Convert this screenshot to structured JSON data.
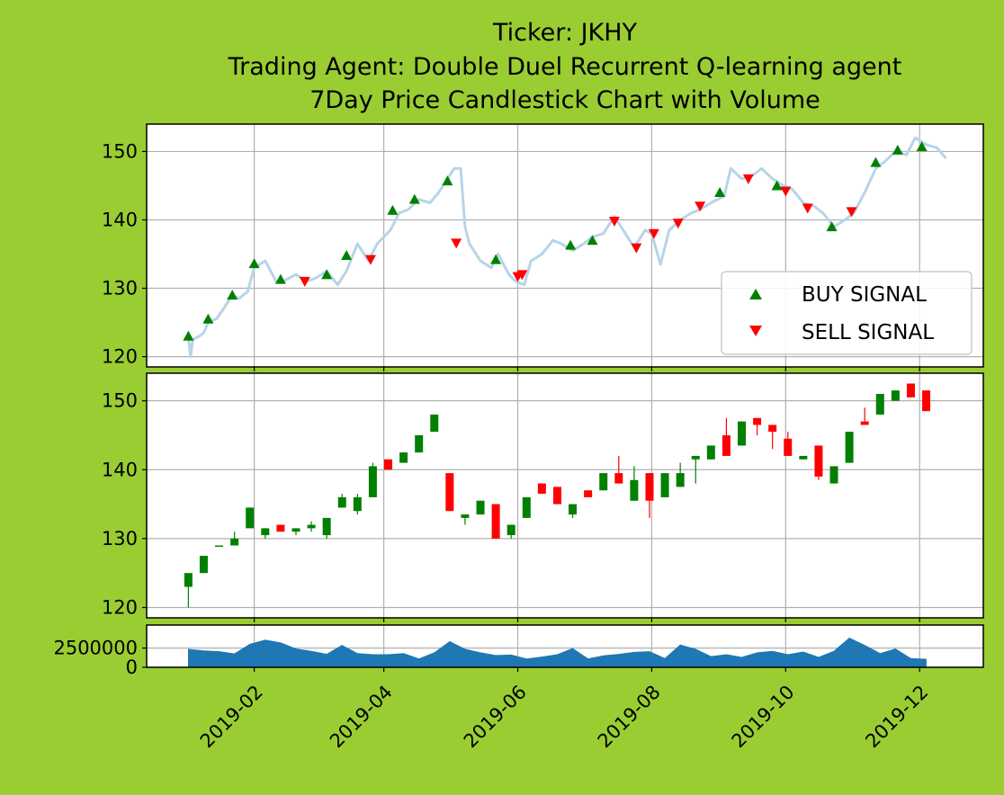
{
  "colors": {
    "background": "#9ACD32",
    "price_line": "#b7d4e8",
    "buy": "#008000",
    "sell": "#ff0000",
    "up_candle": "#008000",
    "down_candle": "#ff0000",
    "volume": "#1f77b4",
    "grid": "#b0b0b0"
  },
  "chart_data": {
    "type": "candlestick",
    "title": [
      "Ticker: JKHY",
      "Trading Agent: Double Duel Recurrent Q-learning agent",
      "7Day Price Candlestick Chart with Volume"
    ],
    "x_ticks": [
      "2019-02",
      "2019-04",
      "2019-06",
      "2019-08",
      "2019-10",
      "2019-12"
    ],
    "x_tick_dates": [
      "2019-02-01",
      "2019-04-01",
      "2019-06-01",
      "2019-08-01",
      "2019-10-01",
      "2019-12-01"
    ],
    "x_range": [
      "2018-12-14",
      "2019-12-30"
    ],
    "price_ylim": [
      118.5,
      154
    ],
    "price_yticks": [
      120,
      130,
      140,
      150
    ],
    "volume_ylim": [
      0,
      5500000
    ],
    "volume_yticks": [
      0,
      2500000
    ],
    "legend": {
      "position": "lower right",
      "entries": [
        "BUY SIGNAL",
        "SELL SIGNAL"
      ]
    },
    "grid": true,
    "price_line": [
      [
        "2019-01-02",
        123
      ],
      [
        "2019-01-03",
        120
      ],
      [
        "2019-01-04",
        122.5
      ],
      [
        "2019-01-07",
        123
      ],
      [
        "2019-01-09",
        123.5
      ],
      [
        "2019-01-11",
        125
      ],
      [
        "2019-01-15",
        125.6
      ],
      [
        "2019-01-18",
        127
      ],
      [
        "2019-01-22",
        129
      ],
      [
        "2019-01-25",
        128.5
      ],
      [
        "2019-01-29",
        129.5
      ],
      [
        "2019-02-01",
        133
      ],
      [
        "2019-02-06",
        134
      ],
      [
        "2019-02-11",
        131
      ],
      [
        "2019-02-14",
        131
      ],
      [
        "2019-02-20",
        132
      ],
      [
        "2019-02-25",
        131
      ],
      [
        "2019-03-01",
        131.5
      ],
      [
        "2019-03-06",
        132.5
      ],
      [
        "2019-03-11",
        130.5
      ],
      [
        "2019-03-15",
        132.5
      ],
      [
        "2019-03-20",
        136.5
      ],
      [
        "2019-03-25",
        134
      ],
      [
        "2019-03-29",
        136.5
      ],
      [
        "2019-04-04",
        138.5
      ],
      [
        "2019-04-08",
        141
      ],
      [
        "2019-04-12",
        141.5
      ],
      [
        "2019-04-17",
        143
      ],
      [
        "2019-04-22",
        142.5
      ],
      [
        "2019-04-26",
        144
      ],
      [
        "2019-04-30",
        146
      ],
      [
        "2019-05-03",
        147.5
      ],
      [
        "2019-05-06",
        147.5
      ],
      [
        "2019-05-08",
        139
      ],
      [
        "2019-05-10",
        136.5
      ],
      [
        "2019-05-15",
        134
      ],
      [
        "2019-05-20",
        133
      ],
      [
        "2019-05-23",
        135
      ],
      [
        "2019-05-28",
        132
      ],
      [
        "2019-05-31",
        131
      ],
      [
        "2019-06-04",
        130.5
      ],
      [
        "2019-06-07",
        134
      ],
      [
        "2019-06-12",
        135
      ],
      [
        "2019-06-17",
        137
      ],
      [
        "2019-06-21",
        136.5
      ],
      [
        "2019-06-26",
        135.5
      ],
      [
        "2019-07-01",
        136.5
      ],
      [
        "2019-07-05",
        137.5
      ],
      [
        "2019-07-10",
        138
      ],
      [
        "2019-07-15",
        140.5
      ],
      [
        "2019-07-19",
        138.5
      ],
      [
        "2019-07-24",
        136
      ],
      [
        "2019-07-29",
        138.5
      ],
      [
        "2019-08-01",
        138
      ],
      [
        "2019-08-05",
        133.5
      ],
      [
        "2019-08-09",
        138.5
      ],
      [
        "2019-08-14",
        140
      ],
      [
        "2019-08-19",
        141
      ],
      [
        "2019-08-23",
        141.5
      ],
      [
        "2019-08-28",
        142.5
      ],
      [
        "2019-09-03",
        143.5
      ],
      [
        "2019-09-06",
        147.5
      ],
      [
        "2019-09-11",
        146
      ],
      [
        "2019-09-16",
        146.5
      ],
      [
        "2019-09-20",
        147.5
      ],
      [
        "2019-09-25",
        146
      ],
      [
        "2019-09-30",
        145
      ],
      [
        "2019-10-04",
        144.5
      ],
      [
        "2019-10-09",
        142.5
      ],
      [
        "2019-10-14",
        142
      ],
      [
        "2019-10-18",
        141
      ],
      [
        "2019-10-23",
        139
      ],
      [
        "2019-10-28",
        140
      ],
      [
        "2019-11-01",
        141
      ],
      [
        "2019-11-06",
        144
      ],
      [
        "2019-11-11",
        147.5
      ],
      [
        "2019-11-15",
        148.5
      ],
      [
        "2019-11-20",
        150
      ],
      [
        "2019-11-25",
        149.5
      ],
      [
        "2019-11-29",
        152
      ],
      [
        "2019-12-04",
        151
      ],
      [
        "2019-12-09",
        150.5
      ],
      [
        "2019-12-13",
        149
      ]
    ],
    "buy_signals": [
      [
        "2019-01-02",
        123
      ],
      [
        "2019-01-11",
        125.5
      ],
      [
        "2019-01-22",
        129
      ],
      [
        "2019-02-01",
        133.6
      ],
      [
        "2019-02-13",
        131.3
      ],
      [
        "2019-03-06",
        132
      ],
      [
        "2019-03-15",
        134.8
      ],
      [
        "2019-04-05",
        141.4
      ],
      [
        "2019-04-15",
        143
      ],
      [
        "2019-04-30",
        145.7
      ],
      [
        "2019-05-22",
        134.2
      ],
      [
        "2019-06-25",
        136.3
      ],
      [
        "2019-07-05",
        137
      ],
      [
        "2019-09-01",
        144
      ],
      [
        "2019-09-27",
        145
      ],
      [
        "2019-10-22",
        139
      ],
      [
        "2019-11-11",
        148.4
      ],
      [
        "2019-11-21",
        150.2
      ],
      [
        "2019-12-02",
        150.7
      ]
    ],
    "sell_signals": [
      [
        "2019-02-24",
        131
      ],
      [
        "2019-03-26",
        134.2
      ],
      [
        "2019-05-04",
        136.6
      ],
      [
        "2019-06-01",
        131.7
      ],
      [
        "2019-06-03",
        132
      ],
      [
        "2019-07-15",
        139.8
      ],
      [
        "2019-07-25",
        135.9
      ],
      [
        "2019-08-02",
        138
      ],
      [
        "2019-08-13",
        139.5
      ],
      [
        "2019-08-23",
        142
      ],
      [
        "2019-09-14",
        146
      ],
      [
        "2019-10-01",
        144.2
      ],
      [
        "2019-10-11",
        141.7
      ],
      [
        "2019-10-31",
        141.2
      ]
    ],
    "candles": [
      [
        "2019-01-02",
        123,
        125,
        123,
        120
      ],
      [
        "2019-01-09",
        125,
        127.5,
        127.5,
        125
      ],
      [
        "2019-01-16",
        129,
        129,
        128,
        128
      ],
      [
        "2019-01-23",
        129,
        130,
        131,
        129
      ],
      [
        "2019-01-30",
        131.5,
        134.5,
        134.5,
        131.5
      ],
      [
        "2019-02-06",
        130.5,
        131.5,
        131.5,
        130
      ],
      [
        "2019-02-13",
        132,
        131,
        132,
        131
      ],
      [
        "2019-02-20",
        131,
        131.5,
        131.5,
        130.5
      ],
      [
        "2019-02-27",
        131.5,
        132,
        132.5,
        131
      ],
      [
        "2019-03-06",
        130.5,
        133,
        133,
        130
      ],
      [
        "2019-03-13",
        134.5,
        136,
        136.5,
        134.5
      ],
      [
        "2019-03-20",
        134,
        136,
        136.5,
        133.5
      ],
      [
        "2019-03-27",
        136,
        140.5,
        141,
        136
      ],
      [
        "2019-04-03",
        141.5,
        140,
        141.5,
        140
      ],
      [
        "2019-04-10",
        141,
        142.5,
        142.5,
        141
      ],
      [
        "2019-04-17",
        142.5,
        145,
        145,
        142.5
      ],
      [
        "2019-04-24",
        145.5,
        148,
        148,
        145.5
      ],
      [
        "2019-05-01",
        139.5,
        134,
        139.5,
        134
      ],
      [
        "2019-05-08",
        133,
        133.5,
        133.5,
        132
      ],
      [
        "2019-05-15",
        133.5,
        135.5,
        135.5,
        133.5
      ],
      [
        "2019-05-22",
        135,
        130,
        135,
        130
      ],
      [
        "2019-05-29",
        130.5,
        132,
        132,
        130
      ],
      [
        "2019-06-05",
        133,
        136,
        136,
        133
      ],
      [
        "2019-06-12",
        138,
        136.5,
        138,
        136.5
      ],
      [
        "2019-06-19",
        137.5,
        135,
        137.5,
        135
      ],
      [
        "2019-06-26",
        133.5,
        135,
        135,
        133
      ],
      [
        "2019-07-03",
        137,
        136,
        137,
        136
      ],
      [
        "2019-07-10",
        137,
        139.5,
        139.5,
        137
      ],
      [
        "2019-07-17",
        139.5,
        138,
        142,
        138
      ],
      [
        "2019-07-24",
        135.5,
        138.5,
        140.5,
        135.5
      ],
      [
        "2019-07-31",
        139.5,
        135.5,
        139.5,
        133
      ],
      [
        "2019-08-07",
        136,
        139.5,
        139.5,
        136
      ],
      [
        "2019-08-14",
        137.5,
        139.5,
        141,
        137.5
      ],
      [
        "2019-08-21",
        141.5,
        142,
        142,
        138
      ],
      [
        "2019-08-28",
        141.5,
        143.5,
        143.5,
        141.5
      ],
      [
        "2019-09-04",
        145,
        142,
        147.5,
        142
      ],
      [
        "2019-09-11",
        143.5,
        147,
        147,
        143.5
      ],
      [
        "2019-09-18",
        147.5,
        146.5,
        147.5,
        145
      ],
      [
        "2019-09-25",
        146.5,
        145.5,
        146.5,
        143
      ],
      [
        "2019-10-02",
        144.5,
        142,
        145.5,
        142
      ],
      [
        "2019-10-09",
        141.5,
        142,
        142,
        141.5
      ],
      [
        "2019-10-16",
        143.5,
        139,
        143.5,
        138.5
      ],
      [
        "2019-10-23",
        138,
        140.5,
        140.5,
        138
      ],
      [
        "2019-10-30",
        141,
        145.5,
        145.5,
        141
      ],
      [
        "2019-11-06",
        147,
        146.5,
        149,
        146.5
      ],
      [
        "2019-11-13",
        148,
        151,
        151,
        148
      ],
      [
        "2019-11-20",
        150,
        151.5,
        151.5,
        150
      ],
      [
        "2019-11-27",
        152.5,
        150.5,
        152.5,
        150.5
      ],
      [
        "2019-12-04",
        151.5,
        148.5,
        151.5,
        148.5
      ]
    ],
    "volume": [
      [
        "2019-01-02",
        2350000
      ],
      [
        "2019-01-09",
        2150000
      ],
      [
        "2019-01-16",
        2050000
      ],
      [
        "2019-01-23",
        1750000
      ],
      [
        "2019-01-30",
        3000000
      ],
      [
        "2019-02-06",
        3550000
      ],
      [
        "2019-02-13",
        3200000
      ],
      [
        "2019-02-20",
        2400000
      ],
      [
        "2019-02-27",
        2100000
      ],
      [
        "2019-03-06",
        1700000
      ],
      [
        "2019-03-13",
        2850000
      ],
      [
        "2019-03-20",
        1800000
      ],
      [
        "2019-03-27",
        1650000
      ],
      [
        "2019-04-03",
        1650000
      ],
      [
        "2019-04-10",
        1800000
      ],
      [
        "2019-04-17",
        1100000
      ],
      [
        "2019-04-24",
        1900000
      ],
      [
        "2019-05-01",
        3350000
      ],
      [
        "2019-05-08",
        2350000
      ],
      [
        "2019-05-15",
        1900000
      ],
      [
        "2019-05-22",
        1550000
      ],
      [
        "2019-05-29",
        1600000
      ],
      [
        "2019-06-05",
        1100000
      ],
      [
        "2019-06-12",
        1350000
      ],
      [
        "2019-06-19",
        1650000
      ],
      [
        "2019-06-26",
        2450000
      ],
      [
        "2019-07-03",
        1100000
      ],
      [
        "2019-07-10",
        1500000
      ],
      [
        "2019-07-17",
        1700000
      ],
      [
        "2019-07-24",
        1950000
      ],
      [
        "2019-07-31",
        2050000
      ],
      [
        "2019-08-07",
        1150000
      ],
      [
        "2019-08-14",
        2900000
      ],
      [
        "2019-08-21",
        2350000
      ],
      [
        "2019-08-28",
        1400000
      ],
      [
        "2019-09-04",
        1650000
      ],
      [
        "2019-09-11",
        1300000
      ],
      [
        "2019-09-18",
        1900000
      ],
      [
        "2019-09-25",
        2100000
      ],
      [
        "2019-10-02",
        1650000
      ],
      [
        "2019-10-09",
        2000000
      ],
      [
        "2019-10-16",
        1300000
      ],
      [
        "2019-10-23",
        2100000
      ],
      [
        "2019-10-30",
        3800000
      ],
      [
        "2019-11-06",
        2850000
      ],
      [
        "2019-11-13",
        1800000
      ],
      [
        "2019-11-20",
        2400000
      ],
      [
        "2019-11-27",
        1150000
      ],
      [
        "2019-12-04",
        1050000
      ]
    ]
  }
}
